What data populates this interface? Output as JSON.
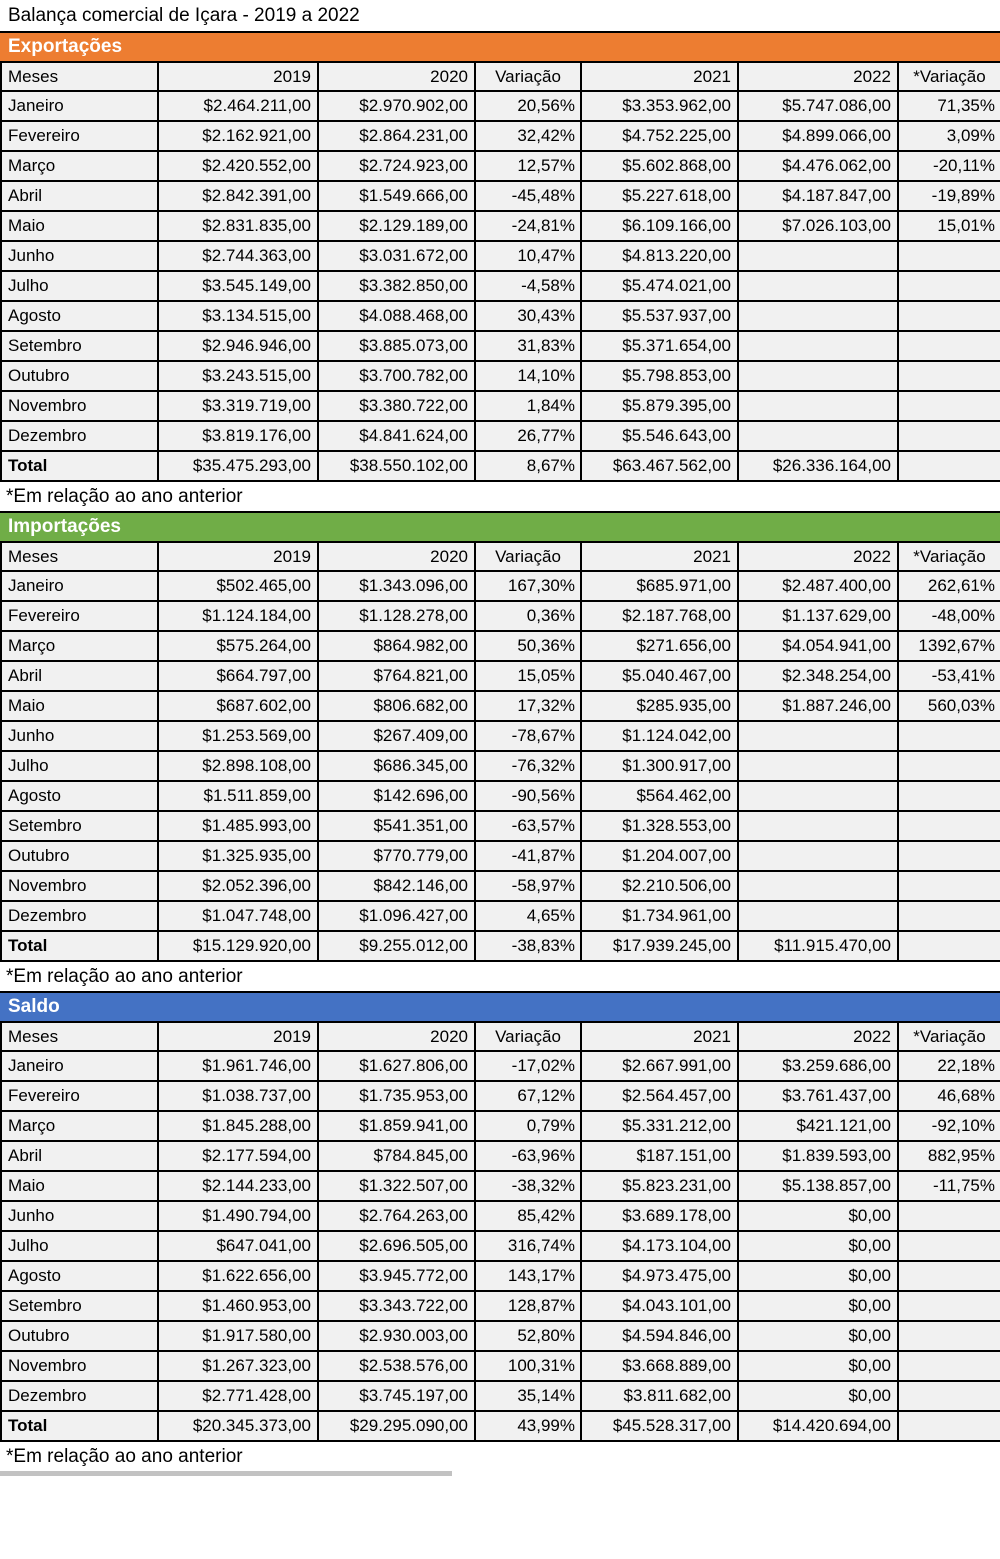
{
  "title": "Balança comercial de Içara - 2019 a 2022",
  "footnote": "*Em relação ao ano anterior",
  "columns": [
    "Meses",
    "2019",
    "2020",
    "Variação",
    "2021",
    "2022",
    "*Variação"
  ],
  "colors": {
    "exportacoes_header": "#ED7D31",
    "importacoes_header": "#70AD47",
    "saldo_header": "#4472C4",
    "cell_background": "#F1F1F1",
    "border": "#000000"
  },
  "chart_data": [
    {
      "type": "table",
      "title": "Exportações",
      "header_color": "#ED7D31",
      "columns": [
        "Meses",
        "2019",
        "2020",
        "Variação",
        "2021",
        "2022",
        "*Variação"
      ],
      "rows": [
        [
          "Janeiro",
          "$2.464.211,00",
          "$2.970.902,00",
          "20,56%",
          "$3.353.962,00",
          "$5.747.086,00",
          "71,35%"
        ],
        [
          "Fevereiro",
          "$2.162.921,00",
          "$2.864.231,00",
          "32,42%",
          "$4.752.225,00",
          "$4.899.066,00",
          "3,09%"
        ],
        [
          "Março",
          "$2.420.552,00",
          "$2.724.923,00",
          "12,57%",
          "$5.602.868,00",
          "$4.476.062,00",
          "-20,11%"
        ],
        [
          "Abril",
          "$2.842.391,00",
          "$1.549.666,00",
          "-45,48%",
          "$5.227.618,00",
          "$4.187.847,00",
          "-19,89%"
        ],
        [
          "Maio",
          "$2.831.835,00",
          "$2.129.189,00",
          "-24,81%",
          "$6.109.166,00",
          "$7.026.103,00",
          "15,01%"
        ],
        [
          "Junho",
          "$2.744.363,00",
          "$3.031.672,00",
          "10,47%",
          "$4.813.220,00",
          "",
          ""
        ],
        [
          "Julho",
          "$3.545.149,00",
          "$3.382.850,00",
          "-4,58%",
          "$5.474.021,00",
          "",
          ""
        ],
        [
          "Agosto",
          "$3.134.515,00",
          "$4.088.468,00",
          "30,43%",
          "$5.537.937,00",
          "",
          ""
        ],
        [
          "Setembro",
          "$2.946.946,00",
          "$3.885.073,00",
          "31,83%",
          "$5.371.654,00",
          "",
          ""
        ],
        [
          "Outubro",
          "$3.243.515,00",
          "$3.700.782,00",
          "14,10%",
          "$5.798.853,00",
          "",
          ""
        ],
        [
          "Novembro",
          "$3.319.719,00",
          "$3.380.722,00",
          "1,84%",
          "$5.879.395,00",
          "",
          ""
        ],
        [
          "Dezembro",
          "$3.819.176,00",
          "$4.841.624,00",
          "26,77%",
          "$5.546.643,00",
          "",
          ""
        ],
        [
          "Total",
          "$35.475.293,00",
          "$38.550.102,00",
          "8,67%",
          "$63.467.562,00",
          "$26.336.164,00",
          ""
        ]
      ]
    },
    {
      "type": "table",
      "title": "Importações",
      "header_color": "#70AD47",
      "columns": [
        "Meses",
        "2019",
        "2020",
        "Variação",
        "2021",
        "2022",
        "*Variação"
      ],
      "rows": [
        [
          "Janeiro",
          "$502.465,00",
          "$1.343.096,00",
          "167,30%",
          "$685.971,00",
          "$2.487.400,00",
          "262,61%"
        ],
        [
          "Fevereiro",
          "$1.124.184,00",
          "$1.128.278,00",
          "0,36%",
          "$2.187.768,00",
          "$1.137.629,00",
          "-48,00%"
        ],
        [
          "Março",
          "$575.264,00",
          "$864.982,00",
          "50,36%",
          "$271.656,00",
          "$4.054.941,00",
          "1392,67%"
        ],
        [
          "Abril",
          "$664.797,00",
          "$764.821,00",
          "15,05%",
          "$5.040.467,00",
          "$2.348.254,00",
          "-53,41%"
        ],
        [
          "Maio",
          "$687.602,00",
          "$806.682,00",
          "17,32%",
          "$285.935,00",
          "$1.887.246,00",
          "560,03%"
        ],
        [
          "Junho",
          "$1.253.569,00",
          "$267.409,00",
          "-78,67%",
          "$1.124.042,00",
          "",
          ""
        ],
        [
          "Julho",
          "$2.898.108,00",
          "$686.345,00",
          "-76,32%",
          "$1.300.917,00",
          "",
          ""
        ],
        [
          "Agosto",
          "$1.511.859,00",
          "$142.696,00",
          "-90,56%",
          "$564.462,00",
          "",
          ""
        ],
        [
          "Setembro",
          "$1.485.993,00",
          "$541.351,00",
          "-63,57%",
          "$1.328.553,00",
          "",
          ""
        ],
        [
          "Outubro",
          "$1.325.935,00",
          "$770.779,00",
          "-41,87%",
          "$1.204.007,00",
          "",
          ""
        ],
        [
          "Novembro",
          "$2.052.396,00",
          "$842.146,00",
          "-58,97%",
          "$2.210.506,00",
          "",
          ""
        ],
        [
          "Dezembro",
          "$1.047.748,00",
          "$1.096.427,00",
          "4,65%",
          "$1.734.961,00",
          "",
          ""
        ],
        [
          "Total",
          "$15.129.920,00",
          "$9.255.012,00",
          "-38,83%",
          "$17.939.245,00",
          "$11.915.470,00",
          ""
        ]
      ]
    },
    {
      "type": "table",
      "title": "Saldo",
      "header_color": "#4472C4",
      "columns": [
        "Meses",
        "2019",
        "2020",
        "Variação",
        "2021",
        "2022",
        "*Variação"
      ],
      "rows": [
        [
          "Janeiro",
          "$1.961.746,00",
          "$1.627.806,00",
          "-17,02%",
          "$2.667.991,00",
          "$3.259.686,00",
          "22,18%"
        ],
        [
          "Fevereiro",
          "$1.038.737,00",
          "$1.735.953,00",
          "67,12%",
          "$2.564.457,00",
          "$3.761.437,00",
          "46,68%"
        ],
        [
          "Março",
          "$1.845.288,00",
          "$1.859.941,00",
          "0,79%",
          "$5.331.212,00",
          "$421.121,00",
          "-92,10%"
        ],
        [
          "Abril",
          "$2.177.594,00",
          "$784.845,00",
          "-63,96%",
          "$187.151,00",
          "$1.839.593,00",
          "882,95%"
        ],
        [
          "Maio",
          "$2.144.233,00",
          "$1.322.507,00",
          "-38,32%",
          "$5.823.231,00",
          "$5.138.857,00",
          "-11,75%"
        ],
        [
          "Junho",
          "$1.490.794,00",
          "$2.764.263,00",
          "85,42%",
          "$3.689.178,00",
          "$0,00",
          ""
        ],
        [
          "Julho",
          "$647.041,00",
          "$2.696.505,00",
          "316,74%",
          "$4.173.104,00",
          "$0,00",
          ""
        ],
        [
          "Agosto",
          "$1.622.656,00",
          "$3.945.772,00",
          "143,17%",
          "$4.973.475,00",
          "$0,00",
          ""
        ],
        [
          "Setembro",
          "$1.460.953,00",
          "$3.343.722,00",
          "128,87%",
          "$4.043.101,00",
          "$0,00",
          ""
        ],
        [
          "Outubro",
          "$1.917.580,00",
          "$2.930.003,00",
          "52,80%",
          "$4.594.846,00",
          "$0,00",
          ""
        ],
        [
          "Novembro",
          "$1.267.323,00",
          "$2.538.576,00",
          "100,31%",
          "$3.668.889,00",
          "$0,00",
          ""
        ],
        [
          "Dezembro",
          "$2.771.428,00",
          "$3.745.197,00",
          "35,14%",
          "$3.811.682,00",
          "$0,00",
          ""
        ],
        [
          "Total",
          "$20.345.373,00",
          "$29.295.090,00",
          "43,99%",
          "$45.528.317,00",
          "$14.420.694,00",
          ""
        ]
      ]
    }
  ]
}
